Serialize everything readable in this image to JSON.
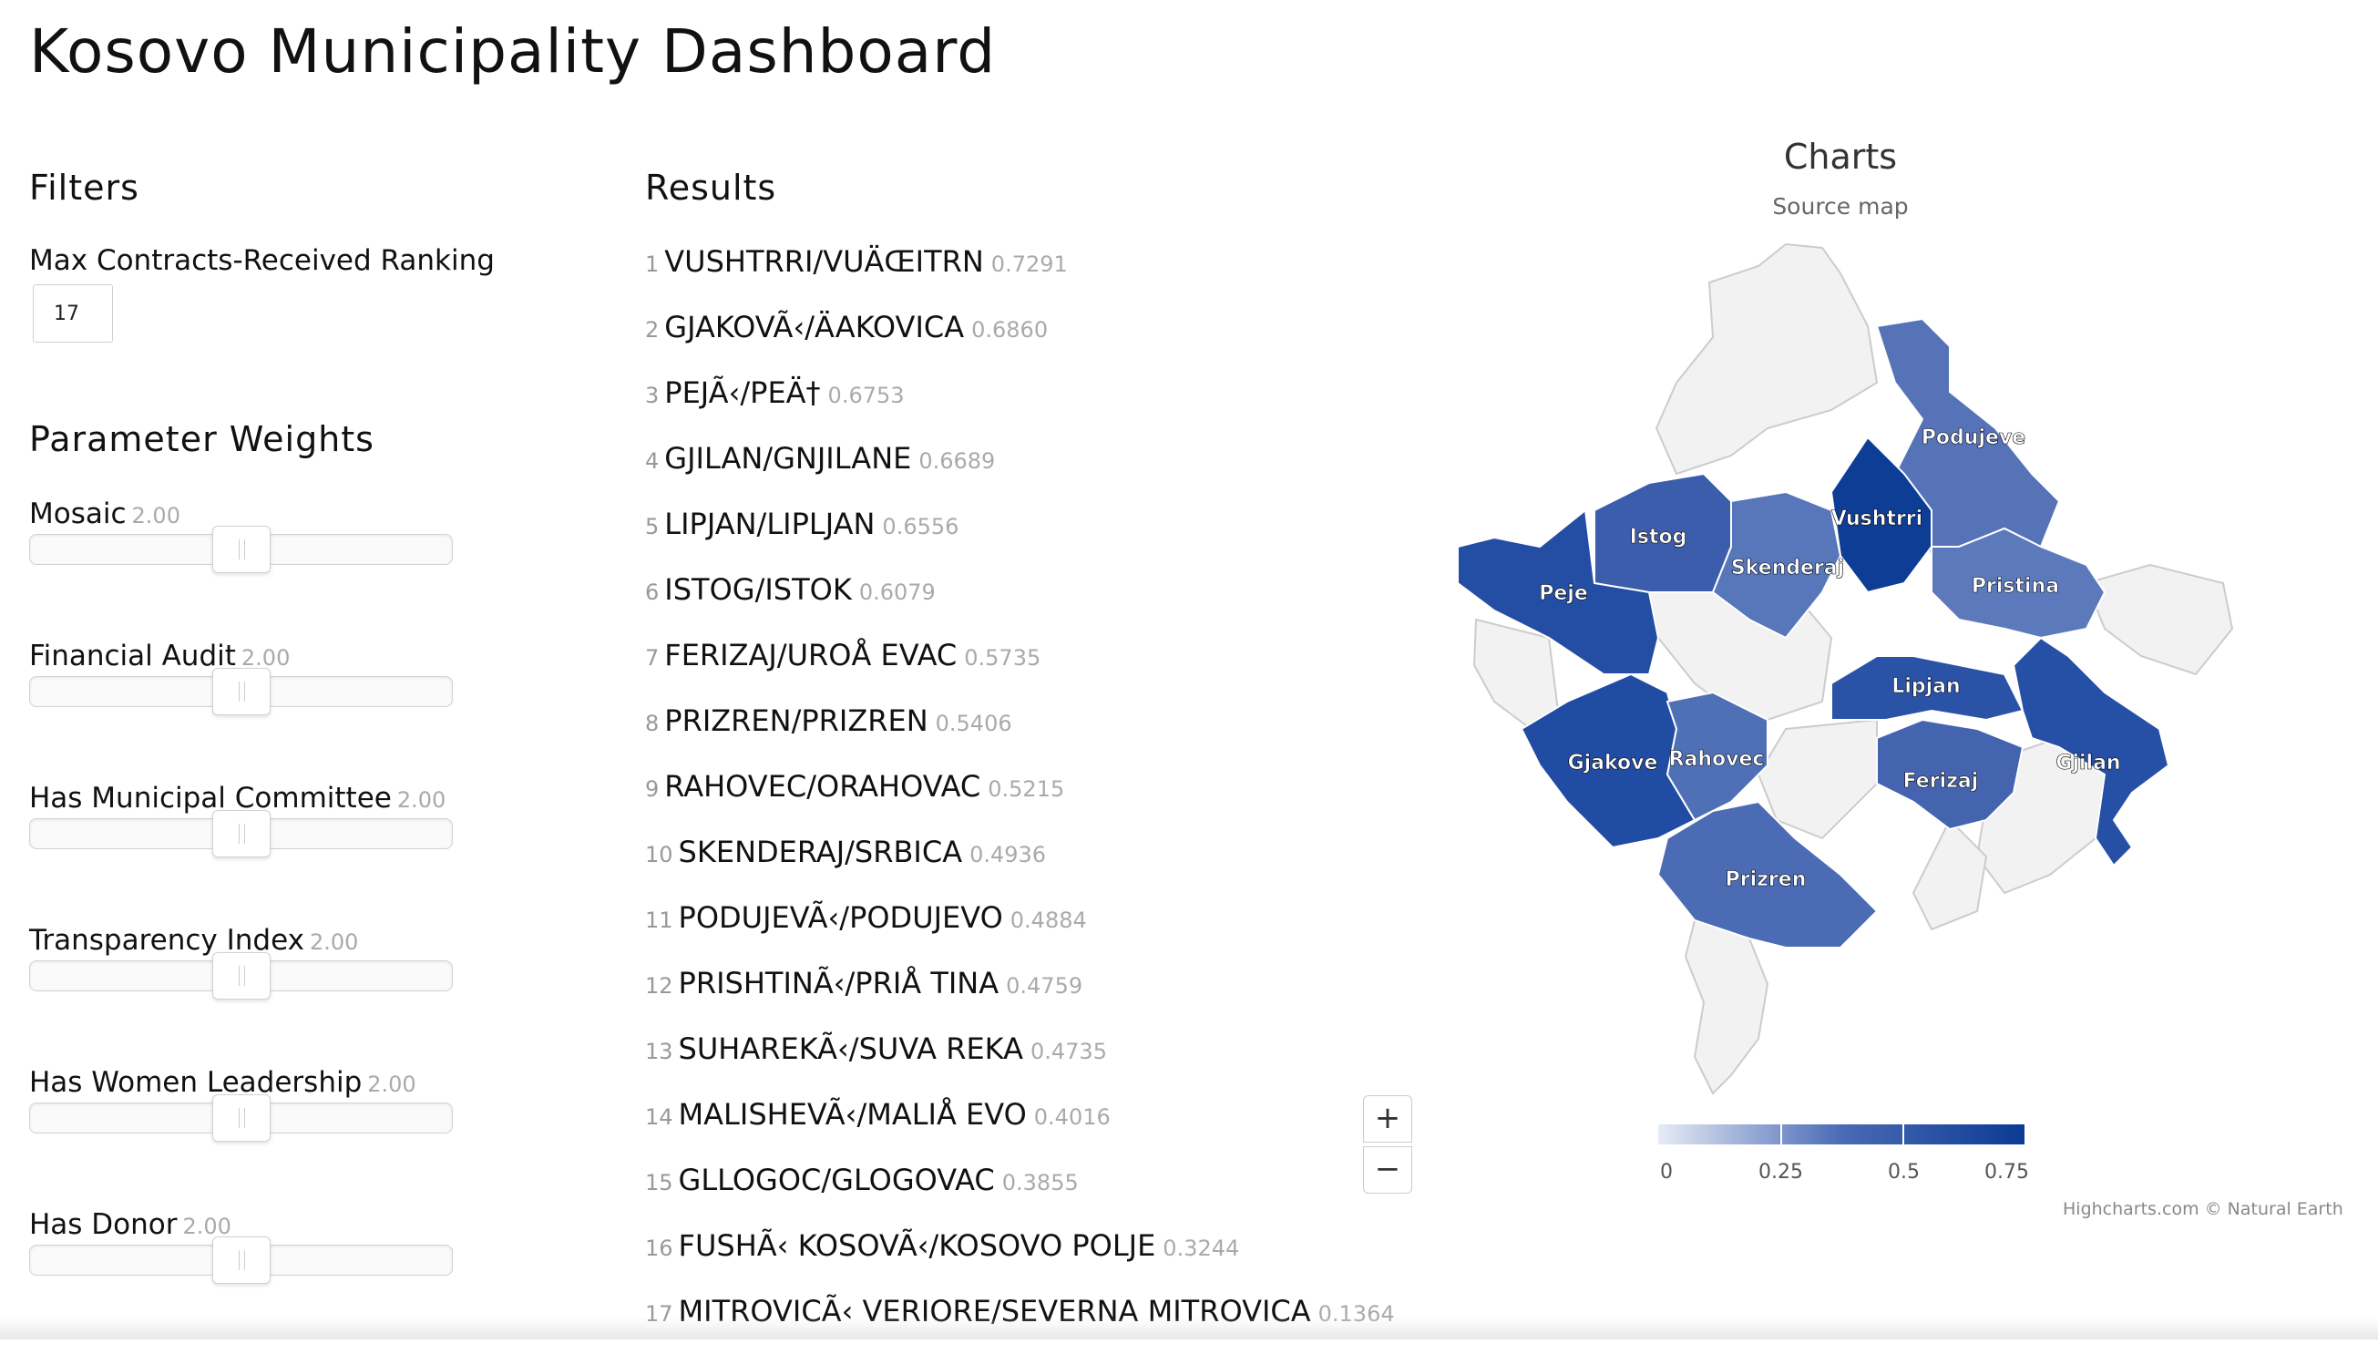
{
  "title": "Kosovo Municipality Dashboard",
  "filters": {
    "heading": "Filters",
    "max_label": "Max Contracts-Received Ranking",
    "max_value": "17"
  },
  "weights": {
    "heading": "Parameter Weights",
    "items": [
      {
        "label": "Mosaic",
        "value": "2.00"
      },
      {
        "label": "Financial Audit",
        "value": "2.00"
      },
      {
        "label": "Has Municipal Committee",
        "value": "2.00"
      },
      {
        "label": "Transparency Index",
        "value": "2.00"
      },
      {
        "label": "Has Women Leadership",
        "value": "2.00"
      },
      {
        "label": "Has Donor",
        "value": "2.00"
      }
    ]
  },
  "results": {
    "heading": "Results",
    "items": [
      {
        "rank": "1",
        "name": "VUSHTRRI/VUÄŒITRN",
        "score": "0.7291"
      },
      {
        "rank": "2",
        "name": "GJAKOVÃ‹/ÄAKOVICA",
        "score": "0.6860"
      },
      {
        "rank": "3",
        "name": "PEJÃ‹/PEÄ†",
        "score": "0.6753"
      },
      {
        "rank": "4",
        "name": "GJILAN/GNJILANE",
        "score": "0.6689"
      },
      {
        "rank": "5",
        "name": "LIPJAN/LIPLJAN",
        "score": "0.6556"
      },
      {
        "rank": "6",
        "name": "ISTOG/ISTOK",
        "score": "0.6079"
      },
      {
        "rank": "7",
        "name": "FERIZAJ/UROÅ EVAC",
        "score": "0.5735"
      },
      {
        "rank": "8",
        "name": "PRIZREN/PRIZREN",
        "score": "0.5406"
      },
      {
        "rank": "9",
        "name": "RAHOVEC/ORAHOVAC",
        "score": "0.5215"
      },
      {
        "rank": "10",
        "name": "SKENDERAJ/SRBICA",
        "score": "0.4936"
      },
      {
        "rank": "11",
        "name": "PODUJEVÃ‹/PODUJEVO",
        "score": "0.4884"
      },
      {
        "rank": "12",
        "name": "PRISHTINÃ‹/PRIÅ TINA",
        "score": "0.4759"
      },
      {
        "rank": "13",
        "name": "SUHAREKÃ‹/SUVA REKA",
        "score": "0.4735"
      },
      {
        "rank": "14",
        "name": "MALISHEVÃ‹/MALIÅ EVO",
        "score": "0.4016"
      },
      {
        "rank": "15",
        "name": "GLLOGOC/GLOGOVAC",
        "score": "0.3855"
      },
      {
        "rank": "16",
        "name": "FUSHÃ‹ KOSOVÃ‹/KOSOVO POLJE",
        "score": "0.3244"
      },
      {
        "rank": "17",
        "name": "MITROVICÃ‹ VERIORE/SEVERNA MITROVICA",
        "score": "0.1364"
      }
    ]
  },
  "map": {
    "title": "Charts",
    "subtitle": "Source map",
    "zoom_in": "+",
    "zoom_out": "−",
    "regions": [
      {
        "label": "Podujeve",
        "value": 0.4884,
        "color": "#5673b8"
      },
      {
        "label": "Istog",
        "value": 0.6079,
        "color": "#3c5cac"
      },
      {
        "label": "Vushtrri",
        "value": 0.7291,
        "color": "#0e3d96"
      },
      {
        "label": "Skenderaj",
        "value": 0.4936,
        "color": "#5877ba"
      },
      {
        "label": "Peje",
        "value": 0.6753,
        "color": "#234ea4"
      },
      {
        "label": "Pristina",
        "value": 0.4759,
        "color": "#5c7abb"
      },
      {
        "label": "Lipjan",
        "value": 0.6556,
        "color": "#2a52a6"
      },
      {
        "label": "Gjakove",
        "value": 0.686,
        "color": "#204ca3"
      },
      {
        "label": "Rahovec",
        "value": 0.5215,
        "color": "#5070b6"
      },
      {
        "label": "Ferizaj",
        "value": 0.5735,
        "color": "#4564b0"
      },
      {
        "label": "Gjilan",
        "value": 0.6689,
        "color": "#2650a5"
      },
      {
        "label": "Prizren",
        "value": 0.5406,
        "color": "#4b6bb4"
      }
    ],
    "legend": {
      "labels": [
        "0",
        "0.25",
        "0.5",
        "0.75"
      ],
      "max": 0.75
    },
    "colors": {
      "low": "#e6ebf5",
      "mid": "#4a6bb5",
      "high": "#0b3a94",
      "empty": "#f2f2f2",
      "border": "#cccccc"
    },
    "credits": "Highcharts.com © Natural Earth"
  }
}
